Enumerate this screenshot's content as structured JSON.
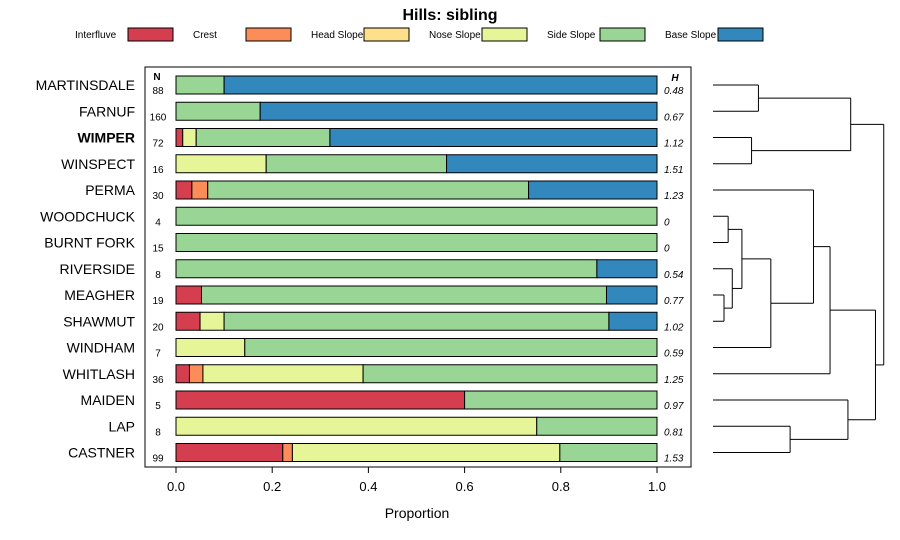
{
  "chart_data": {
    "type": "bar",
    "orientation": "horizontal",
    "stacked": true,
    "title": "Hills: sibling",
    "xlabel": "Proportion",
    "ylabel": "",
    "xlim": [
      0,
      1
    ],
    "xticks": [
      "0.0",
      "0.2",
      "0.4",
      "0.6",
      "0.8",
      "1.0"
    ],
    "n_header": "N",
    "h_header": "H",
    "legend_placement": "top",
    "highlight_category": "WIMPER",
    "series": [
      {
        "name": "Interfluve",
        "color": "#d53e4f"
      },
      {
        "name": "Crest",
        "color": "#fc8d59"
      },
      {
        "name": "Head Slope",
        "color": "#fee08b"
      },
      {
        "name": "Nose Slope",
        "color": "#e6f598"
      },
      {
        "name": "Side Slope",
        "color": "#99d594"
      },
      {
        "name": "Base Slope",
        "color": "#3288bd"
      }
    ],
    "categories": [
      "MARTINSDALE",
      "FARNUF",
      "WIMPER",
      "WINSPECT",
      "PERMA",
      "WOODCHUCK",
      "BURNT FORK",
      "RIVERSIDE",
      "MEAGHER",
      "SHAWMUT",
      "WINDHAM",
      "WHITLASH",
      "MAIDEN",
      "LAP",
      "CASTNER"
    ],
    "n": [
      "88",
      "160",
      "72",
      "16",
      "30",
      "4",
      "15",
      "8",
      "19",
      "20",
      "7",
      "36",
      "5",
      "8",
      "99"
    ],
    "h": [
      "0.48",
      "0.67",
      "1.12",
      "1.51",
      "1.23",
      "0",
      "0",
      "0.54",
      "0.77",
      "1.02",
      "0.59",
      "1.25",
      "0.97",
      "0.81",
      "1.53"
    ],
    "values": [
      [
        0,
        0,
        0,
        0,
        0.1,
        0.9
      ],
      [
        0,
        0,
        0,
        0,
        0.175,
        0.825
      ],
      [
        0.014,
        0,
        0,
        0.028,
        0.278,
        0.68
      ],
      [
        0,
        0,
        0,
        0.1875,
        0.375,
        0.4375
      ],
      [
        0.033,
        0.033,
        0,
        0,
        0.667,
        0.267
      ],
      [
        0,
        0,
        0,
        0,
        1.0,
        0
      ],
      [
        0,
        0,
        0,
        0,
        1.0,
        0
      ],
      [
        0,
        0,
        0,
        0,
        0.875,
        0.125
      ],
      [
        0.053,
        0,
        0,
        0,
        0.842,
        0.105
      ],
      [
        0.05,
        0,
        0,
        0.05,
        0.8,
        0.1
      ],
      [
        0,
        0,
        0,
        0.143,
        0.857,
        0
      ],
      [
        0.028,
        0.028,
        0,
        0.333,
        0.611,
        0
      ],
      [
        0.6,
        0,
        0,
        0,
        0.4,
        0
      ],
      [
        0,
        0,
        0,
        0.75,
        0.25,
        0
      ],
      [
        0.222,
        0.02,
        0,
        0.556,
        0.202,
        0
      ]
    ],
    "dendrogram_merges": [
      {
        "a": 0,
        "b": 1,
        "height": 0.33
      },
      {
        "a": 2,
        "b": 3,
        "height": 0.28
      },
      {
        "a": 15,
        "b": 16,
        "height": 1.0
      },
      {
        "a": 5,
        "b": 6,
        "height": 0.11
      },
      {
        "a": 8,
        "b": 9,
        "height": 0.08
      },
      {
        "a": 7,
        "b": 19,
        "height": 0.14
      },
      {
        "a": 18,
        "b": 20,
        "height": 0.21
      },
      {
        "a": 21,
        "b": 10,
        "height": 0.42
      },
      {
        "a": 4,
        "b": 22,
        "height": 0.73
      },
      {
        "a": 13,
        "b": 14,
        "height": 0.56
      },
      {
        "a": 23,
        "b": 11,
        "height": 0.85
      },
      {
        "a": 24,
        "b": 12,
        "height": 0.98
      },
      {
        "a": 25,
        "b": 26,
        "height": 1.18
      },
      {
        "a": 17,
        "b": 27,
        "height": 1.24
      }
    ]
  }
}
